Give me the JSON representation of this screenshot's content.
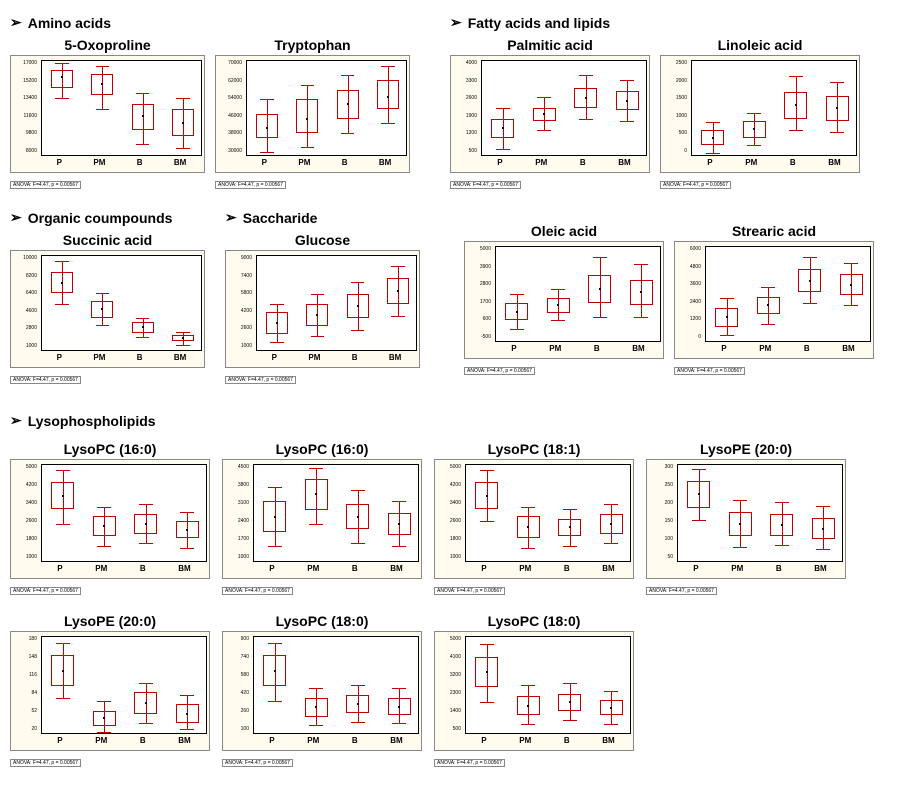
{
  "layout": {
    "categories": [
      "P",
      "PM",
      "B",
      "BM"
    ],
    "box_color": "#c00000",
    "background_color": "#fffcef",
    "plot_background": "#ffffff",
    "border_color": "#000000",
    "title_fontsize": 14,
    "xlabel_fontsize": 8,
    "footer_fontsize": 5,
    "nominal_width": 190,
    "nominal_height": 115,
    "small_width": 200,
    "small_height": 115
  },
  "sections": {
    "amino": {
      "header": "Amino acids",
      "charts": [
        {
          "title": "5-Oxoproline",
          "ylim": [
            8000,
            17000
          ],
          "footer": "ANOVA: F=4.47, p = 0.00567",
          "boxes": [
            {
              "q1": 14500,
              "q3": 16200,
              "med": 15500,
              "lo": 13500,
              "hi": 16800
            },
            {
              "q1": 13800,
              "q3": 15800,
              "med": 14800,
              "lo": 12500,
              "hi": 16500
            },
            {
              "q1": 10500,
              "q3": 13000,
              "med": 11800,
              "lo": 9200,
              "hi": 14000
            },
            {
              "q1": 10000,
              "q3": 12500,
              "med": 11200,
              "lo": 8800,
              "hi": 13500
            }
          ]
        },
        {
          "title": "Tryptophan",
          "ylim": [
            30000,
            70000
          ],
          "footer": "ANOVA: F=4.47, p = 0.00567",
          "boxes": [
            {
              "q1": 38000,
              "q3": 48000,
              "med": 42000,
              "lo": 32000,
              "hi": 54000
            },
            {
              "q1": 40000,
              "q3": 54000,
              "med": 46000,
              "lo": 34000,
              "hi": 60000
            },
            {
              "q1": 46000,
              "q3": 58000,
              "med": 52000,
              "lo": 40000,
              "hi": 64000
            },
            {
              "q1": 50000,
              "q3": 62000,
              "med": 55000,
              "lo": 44000,
              "hi": 68000
            }
          ]
        }
      ]
    },
    "fatty": {
      "header": "Fatty acids and lipids",
      "charts": [
        {
          "title": "Palmitic acid",
          "ylim": [
            500,
            4000
          ],
          "footer": "ANOVA: F=4.47, p = 0.00567",
          "boxes": [
            {
              "q1": 1200,
              "q3": 1900,
              "med": 1550,
              "lo": 800,
              "hi": 2300
            },
            {
              "q1": 1800,
              "q3": 2300,
              "med": 2050,
              "lo": 1500,
              "hi": 2700
            },
            {
              "q1": 2300,
              "q3": 3000,
              "med": 2650,
              "lo": 1900,
              "hi": 3500
            },
            {
              "q1": 2200,
              "q3": 2900,
              "med": 2550,
              "lo": 1800,
              "hi": 3300
            }
          ]
        },
        {
          "title": "Linoleic acid",
          "ylim": [
            0,
            2500
          ],
          "footer": "ANOVA: F=4.47, p = 0.00567",
          "boxes": [
            {
              "q1": 300,
              "q3": 700,
              "med": 500,
              "lo": 100,
              "hi": 900
            },
            {
              "q1": 500,
              "q3": 950,
              "med": 720,
              "lo": 300,
              "hi": 1150
            },
            {
              "q1": 1000,
              "q3": 1700,
              "med": 1350,
              "lo": 700,
              "hi": 2100
            },
            {
              "q1": 950,
              "q3": 1600,
              "med": 1280,
              "lo": 650,
              "hi": 1950
            }
          ]
        },
        {
          "title": "Oleic acid",
          "ylim": [
            -500,
            5000
          ],
          "footer": "ANOVA: F=4.47, p = 0.00567",
          "boxes": [
            {
              "q1": 800,
              "q3": 1800,
              "med": 1300,
              "lo": 300,
              "hi": 2300
            },
            {
              "q1": 1200,
              "q3": 2100,
              "med": 1650,
              "lo": 800,
              "hi": 2600
            },
            {
              "q1": 1800,
              "q3": 3400,
              "med": 2600,
              "lo": 1000,
              "hi": 4400
            },
            {
              "q1": 1700,
              "q3": 3100,
              "med": 2400,
              "lo": 1000,
              "hi": 4000
            }
          ]
        },
        {
          "title": "Strearic acid",
          "ylim": [
            0,
            6000
          ],
          "footer": "ANOVA: F=4.47, p = 0.00567",
          "boxes": [
            {
              "q1": 1000,
              "q3": 2200,
              "med": 1600,
              "lo": 500,
              "hi": 2800
            },
            {
              "q1": 1800,
              "q3": 2900,
              "med": 2350,
              "lo": 1200,
              "hi": 3500
            },
            {
              "q1": 3200,
              "q3": 4600,
              "med": 3900,
              "lo": 2500,
              "hi": 5400
            },
            {
              "q1": 3000,
              "q3": 4300,
              "med": 3650,
              "lo": 2400,
              "hi": 5000
            }
          ]
        }
      ]
    },
    "organic": {
      "header": "Organic coumpounds",
      "charts": [
        {
          "title": "Succinic acid",
          "ylim": [
            1000,
            10000
          ],
          "footer": "ANOVA: F=4.47, p = 0.00567",
          "boxes": [
            {
              "q1": 6500,
              "q3": 8500,
              "med": 7500,
              "lo": 5500,
              "hi": 9500
            },
            {
              "q1": 4200,
              "q3": 5800,
              "med": 5000,
              "lo": 3500,
              "hi": 6500
            },
            {
              "q1": 2800,
              "q3": 3800,
              "med": 3300,
              "lo": 2400,
              "hi": 4200
            },
            {
              "q1": 2000,
              "q3": 2600,
              "med": 2300,
              "lo": 1700,
              "hi": 2900
            }
          ]
        }
      ]
    },
    "saccharide": {
      "header": "Saccharide",
      "charts": [
        {
          "title": "Glucose",
          "ylim": [
            1000,
            9000
          ],
          "footer": "ANOVA: F=4.47, p = 0.00567",
          "boxes": [
            {
              "q1": 2500,
              "q3": 4300,
              "med": 3400,
              "lo": 1800,
              "hi": 5000
            },
            {
              "q1": 3200,
              "q3": 5000,
              "med": 4100,
              "lo": 2300,
              "hi": 5800
            },
            {
              "q1": 3800,
              "q3": 5800,
              "med": 4800,
              "lo": 2800,
              "hi": 6800
            },
            {
              "q1": 5000,
              "q3": 7200,
              "med": 6100,
              "lo": 4000,
              "hi": 8200
            }
          ]
        }
      ]
    },
    "lyso": {
      "header": "Lysophospholipids",
      "charts": [
        {
          "title": "LysoPC (16:0)",
          "ylim": [
            1000,
            5000
          ],
          "footer": "ANOVA: F=4.47, p = 0.00567",
          "boxes": [
            {
              "q1": 3200,
              "q3": 4300,
              "med": 3750,
              "lo": 2600,
              "hi": 4800
            },
            {
              "q1": 2100,
              "q3": 2900,
              "med": 2500,
              "lo": 1700,
              "hi": 3300
            },
            {
              "q1": 2200,
              "q3": 3000,
              "med": 2600,
              "lo": 1800,
              "hi": 3400
            },
            {
              "q1": 2000,
              "q3": 2700,
              "med": 2350,
              "lo": 1600,
              "hi": 3100
            }
          ]
        },
        {
          "title": "LysoPC (16:0)",
          "ylim": [
            1000,
            4500
          ],
          "footer": "ANOVA: F=4.47, p = 0.00567",
          "boxes": [
            {
              "q1": 2100,
              "q3": 3200,
              "med": 2650,
              "lo": 1600,
              "hi": 3700
            },
            {
              "q1": 2900,
              "q3": 4000,
              "med": 3450,
              "lo": 2400,
              "hi": 4400
            },
            {
              "q1": 2200,
              "q3": 3100,
              "med": 2650,
              "lo": 1700,
              "hi": 3600
            },
            {
              "q1": 2000,
              "q3": 2800,
              "med": 2400,
              "lo": 1600,
              "hi": 3200
            }
          ]
        },
        {
          "title": "LysoPC (18:1)",
          "ylim": [
            1000,
            5000
          ],
          "footer": "ANOVA: F=4.47, p = 0.00567",
          "boxes": [
            {
              "q1": 3200,
              "q3": 4300,
              "med": 3750,
              "lo": 2700,
              "hi": 4800
            },
            {
              "q1": 2000,
              "q3": 2900,
              "med": 2450,
              "lo": 1600,
              "hi": 3300
            },
            {
              "q1": 2100,
              "q3": 2800,
              "med": 2450,
              "lo": 1700,
              "hi": 3200
            },
            {
              "q1": 2200,
              "q3": 3000,
              "med": 2600,
              "lo": 1800,
              "hi": 3400
            }
          ]
        },
        {
          "title": "LysoPE (20:0)",
          "ylim": [
            50,
            300
          ],
          "footer": "ANOVA: F=4.47, p = 0.00567",
          "boxes": [
            {
              "q1": 190,
              "q3": 260,
              "med": 225,
              "lo": 160,
              "hi": 290
            },
            {
              "q1": 120,
              "q3": 180,
              "med": 150,
              "lo": 90,
              "hi": 210
            },
            {
              "q1": 120,
              "q3": 175,
              "med": 148,
              "lo": 95,
              "hi": 205
            },
            {
              "q1": 110,
              "q3": 165,
              "med": 138,
              "lo": 85,
              "hi": 195
            }
          ]
        },
        {
          "title": "LysoPE (20:0)",
          "ylim": [
            20,
            180
          ],
          "footer": "ANOVA: F=4.47, p = 0.00567",
          "boxes": [
            {
              "q1": 100,
              "q3": 150,
              "med": 125,
              "lo": 80,
              "hi": 170
            },
            {
              "q1": 35,
              "q3": 60,
              "med": 48,
              "lo": 25,
              "hi": 75
            },
            {
              "q1": 55,
              "q3": 90,
              "med": 72,
              "lo": 40,
              "hi": 105
            },
            {
              "q1": 40,
              "q3": 70,
              "med": 55,
              "lo": 30,
              "hi": 85
            }
          ]
        },
        {
          "title": "LysoPC (18:0)",
          "ylim": [
            100,
            900
          ],
          "footer": "ANOVA: F=4.47, p = 0.00567",
          "boxes": [
            {
              "q1": 500,
              "q3": 750,
              "med": 625,
              "lo": 380,
              "hi": 850
            },
            {
              "q1": 250,
              "q3": 400,
              "med": 325,
              "lo": 180,
              "hi": 480
            },
            {
              "q1": 280,
              "q3": 430,
              "med": 355,
              "lo": 210,
              "hi": 510
            },
            {
              "q1": 260,
              "q3": 400,
              "med": 330,
              "lo": 200,
              "hi": 480
            }
          ]
        },
        {
          "title": "LysoPC (18:0)",
          "ylim": [
            500,
            5000
          ],
          "footer": "ANOVA: F=4.47, p = 0.00567",
          "boxes": [
            {
              "q1": 2700,
              "q3": 4100,
              "med": 3400,
              "lo": 2000,
              "hi": 4700
            },
            {
              "q1": 1400,
              "q3": 2300,
              "med": 1850,
              "lo": 1000,
              "hi": 2800
            },
            {
              "q1": 1600,
              "q3": 2400,
              "med": 2000,
              "lo": 1200,
              "hi": 2900
            },
            {
              "q1": 1400,
              "q3": 2100,
              "med": 1750,
              "lo": 1000,
              "hi": 2500
            }
          ]
        }
      ]
    }
  }
}
